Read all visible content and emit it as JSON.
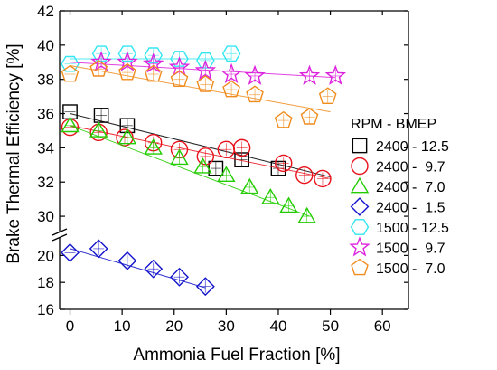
{
  "chart_data": {
    "type": "scatter",
    "xlabel": "Ammonia Fuel Fraction [%]",
    "ylabel": "Brake Thermal Efficiency [%]",
    "xlim": [
      -2,
      65
    ],
    "x_ticks": [
      0,
      10,
      20,
      30,
      40,
      50,
      60
    ],
    "ylim_upper": [
      29,
      42
    ],
    "ylim_lower": [
      16,
      21.5
    ],
    "y_ticks_upper": [
      30,
      32,
      34,
      36,
      38,
      40,
      42
    ],
    "y_ticks_lower": [
      16,
      18,
      20
    ],
    "grid": false,
    "legend_title": "RPM - BMEP",
    "legend_position": "right",
    "series": [
      {
        "name": "2400 - 12.5",
        "marker": "square",
        "color": "#000000",
        "x": [
          0,
          6,
          11,
          28,
          33,
          40
        ],
        "y": [
          36.1,
          35.9,
          35.3,
          32.8,
          33.3,
          32.8
        ],
        "fit": [
          [
            0,
            36.0
          ],
          [
            50,
            32.3
          ]
        ]
      },
      {
        "name": "2400 -  9.7",
        "marker": "circle",
        "color": "#e8101a",
        "x": [
          0,
          5.5,
          10.5,
          16,
          21,
          26,
          30,
          33,
          41,
          45,
          48.5
        ],
        "y": [
          35.2,
          34.9,
          34.6,
          34.3,
          33.9,
          33.5,
          33.9,
          34.0,
          33.1,
          32.4,
          32.2
        ],
        "fit": [
          [
            0,
            35.3
          ],
          [
            50,
            32.2
          ]
        ]
      },
      {
        "name": "2400 -  7.0",
        "marker": "triangle",
        "color": "#22cc00",
        "x": [
          0,
          5.5,
          11,
          16,
          21,
          25.5,
          30,
          34.5,
          38.5,
          42,
          45.5
        ],
        "y": [
          35.3,
          35.0,
          34.6,
          34.0,
          33.4,
          32.9,
          32.4,
          31.7,
          31.1,
          30.6,
          30.0
        ],
        "fit": [
          [
            0,
            35.3
          ],
          [
            46,
            30.0
          ]
        ]
      },
      {
        "name": "2400 -  1.5",
        "marker": "diamond",
        "color": "#1414cc",
        "x": [
          0,
          5.5,
          11,
          16,
          21,
          26
        ],
        "y": [
          20.2,
          20.5,
          19.6,
          19.0,
          18.4,
          17.7
        ],
        "fit": [
          [
            0,
            20.5
          ],
          [
            26,
            17.6
          ]
        ]
      },
      {
        "name": "1500 - 12.5",
        "marker": "hexagon",
        "color": "#33e6f0",
        "x": [
          0,
          6,
          11,
          16,
          21,
          26,
          31
        ],
        "y": [
          38.9,
          39.5,
          39.5,
          39.4,
          39.2,
          39.1,
          39.5
        ],
        "fit": [
          [
            0,
            39.2
          ],
          [
            31,
            39.2
          ]
        ]
      },
      {
        "name": "1500 -  9.7",
        "marker": "star",
        "color": "#dd22dd",
        "x": [
          6,
          11,
          16,
          21,
          26,
          31,
          35.5,
          46,
          51
        ],
        "y": [
          39.0,
          39.0,
          38.9,
          38.7,
          38.5,
          38.3,
          38.2,
          38.2,
          38.2
        ],
        "fit": [
          [
            0,
            39.0
          ],
          [
            51,
            38.1
          ]
        ]
      },
      {
        "name": "1500 -  7.0",
        "marker": "pentagon",
        "color": "#f08c1e",
        "x": [
          0,
          5.5,
          11,
          16,
          21,
          26,
          31,
          35.5,
          41,
          46,
          49.5
        ],
        "y": [
          38.3,
          38.6,
          38.4,
          38.3,
          38.0,
          37.7,
          37.4,
          37.1,
          35.6,
          35.8,
          37.0
        ],
        "fit": [
          [
            0,
            38.8
          ],
          [
            50,
            36.1
          ]
        ]
      }
    ]
  }
}
